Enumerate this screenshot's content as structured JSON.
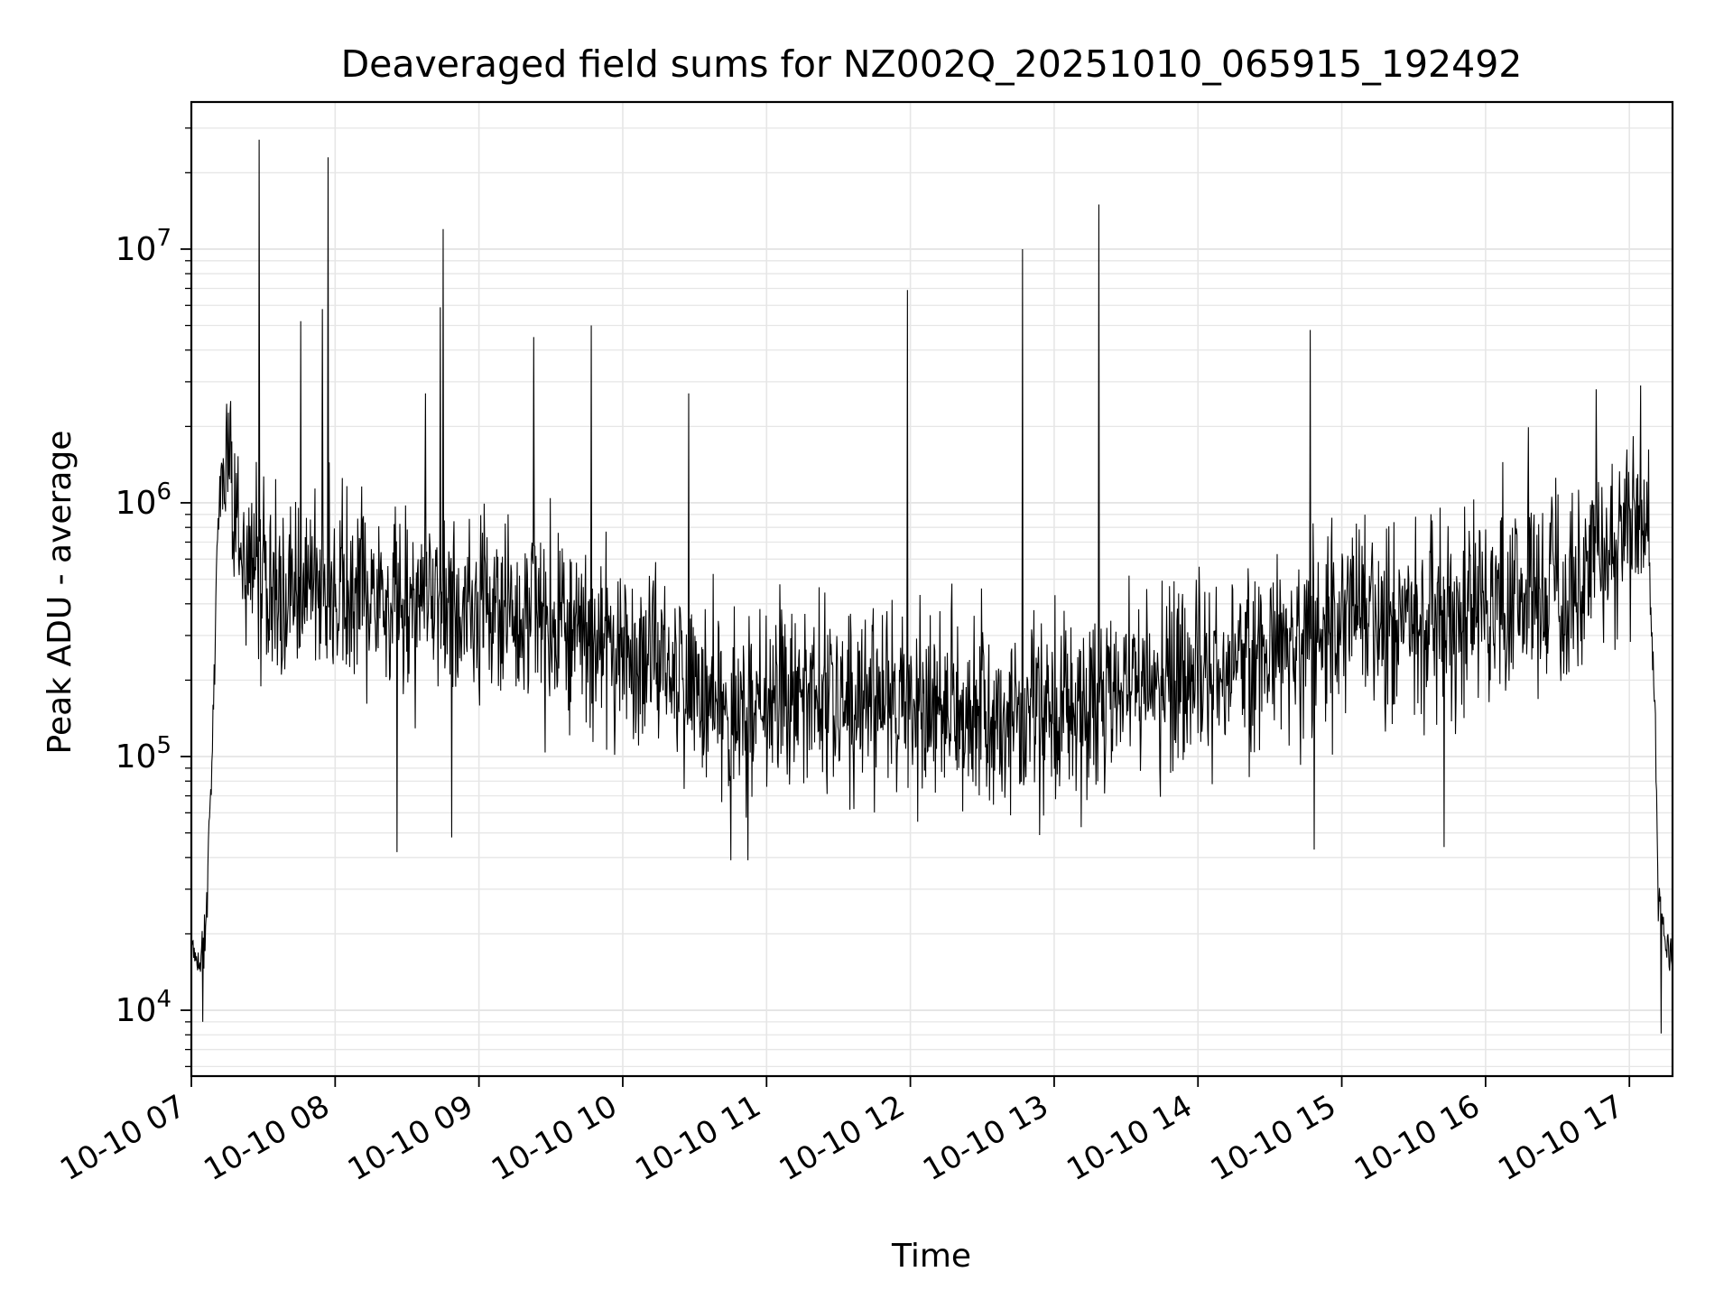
{
  "chart_data": {
    "type": "line",
    "title": "Deaveraged field sums for NZ002Q_20251010_065915_192492",
    "xlabel": "Time",
    "ylabel": "Peak ADU - average",
    "yscale": "log",
    "ylim": [
      5500,
      38000000
    ],
    "xlim": [
      7.0,
      17.3
    ],
    "grid": true,
    "legend": "none",
    "x_ticks": [
      {
        "value": 7,
        "label": "10-10 07"
      },
      {
        "value": 8,
        "label": "10-10 08"
      },
      {
        "value": 9,
        "label": "10-10 09"
      },
      {
        "value": 10,
        "label": "10-10 10"
      },
      {
        "value": 11,
        "label": "10-10 11"
      },
      {
        "value": 12,
        "label": "10-10 12"
      },
      {
        "value": 13,
        "label": "10-10 13"
      },
      {
        "value": 14,
        "label": "10-10 14"
      },
      {
        "value": 15,
        "label": "10-10 15"
      },
      {
        "value": 16,
        "label": "10-10 16"
      },
      {
        "value": 17,
        "label": "10-10 17"
      }
    ],
    "y_ticks": [
      {
        "value": 10000,
        "base": "10",
        "exp": "4"
      },
      {
        "value": 100000,
        "base": "10",
        "exp": "5"
      },
      {
        "value": 1000000,
        "base": "10",
        "exp": "6"
      },
      {
        "value": 10000000,
        "base": "10",
        "exp": "7"
      }
    ],
    "series": [
      {
        "name": "field sums",
        "color": "#000000",
        "x_unit": "hour of day (2025-10-10)",
        "profile": [
          [
            7.0,
            18000
          ],
          [
            7.05,
            15000
          ],
          [
            7.1,
            20000
          ],
          [
            7.12,
            40000
          ],
          [
            7.15,
            120000
          ],
          [
            7.18,
            700000
          ],
          [
            7.22,
            1400000
          ],
          [
            7.26,
            1300000
          ],
          [
            7.3,
            900000
          ],
          [
            7.35,
            650000
          ],
          [
            7.45,
            550000
          ],
          [
            7.6,
            450000
          ],
          [
            8.0,
            450000
          ],
          [
            8.5,
            400000
          ],
          [
            9.0,
            380000
          ],
          [
            9.5,
            320000
          ],
          [
            10.0,
            250000
          ],
          [
            10.5,
            180000
          ],
          [
            10.8,
            150000
          ],
          [
            11.0,
            170000
          ],
          [
            11.5,
            160000
          ],
          [
            12.0,
            150000
          ],
          [
            12.5,
            150000
          ],
          [
            13.0,
            150000
          ],
          [
            13.5,
            170000
          ],
          [
            14.0,
            200000
          ],
          [
            14.5,
            260000
          ],
          [
            15.0,
            320000
          ],
          [
            15.5,
            350000
          ],
          [
            16.0,
            380000
          ],
          [
            16.5,
            450000
          ],
          [
            16.9,
            600000
          ],
          [
            17.05,
            900000
          ],
          [
            17.12,
            800000
          ],
          [
            17.18,
            150000
          ],
          [
            17.2,
            30000
          ],
          [
            17.25,
            18000
          ],
          [
            17.3,
            15000
          ]
        ],
        "noise_spread_dex": 0.55,
        "spikes": [
          [
            7.47,
            27000000
          ],
          [
            7.76,
            5200000
          ],
          [
            7.91,
            5800000
          ],
          [
            7.95,
            23000000
          ],
          [
            8.63,
            2700000
          ],
          [
            8.73,
            5900000
          ],
          [
            8.75,
            12000000
          ],
          [
            9.38,
            4500000
          ],
          [
            9.78,
            5000000
          ],
          [
            10.46,
            2700000
          ],
          [
            11.98,
            6900000
          ],
          [
            12.78,
            10000000
          ],
          [
            13.31,
            15000000
          ],
          [
            14.78,
            4800000
          ],
          [
            16.77,
            2800000
          ],
          [
            17.08,
            2900000
          ]
        ],
        "dips": [
          [
            7.08,
            9000
          ],
          [
            8.43,
            42000
          ],
          [
            8.81,
            48000
          ],
          [
            10.75,
            39000
          ],
          [
            10.87,
            39000
          ],
          [
            14.81,
            43000
          ],
          [
            15.71,
            44000
          ],
          [
            17.22,
            8100
          ]
        ]
      }
    ]
  }
}
